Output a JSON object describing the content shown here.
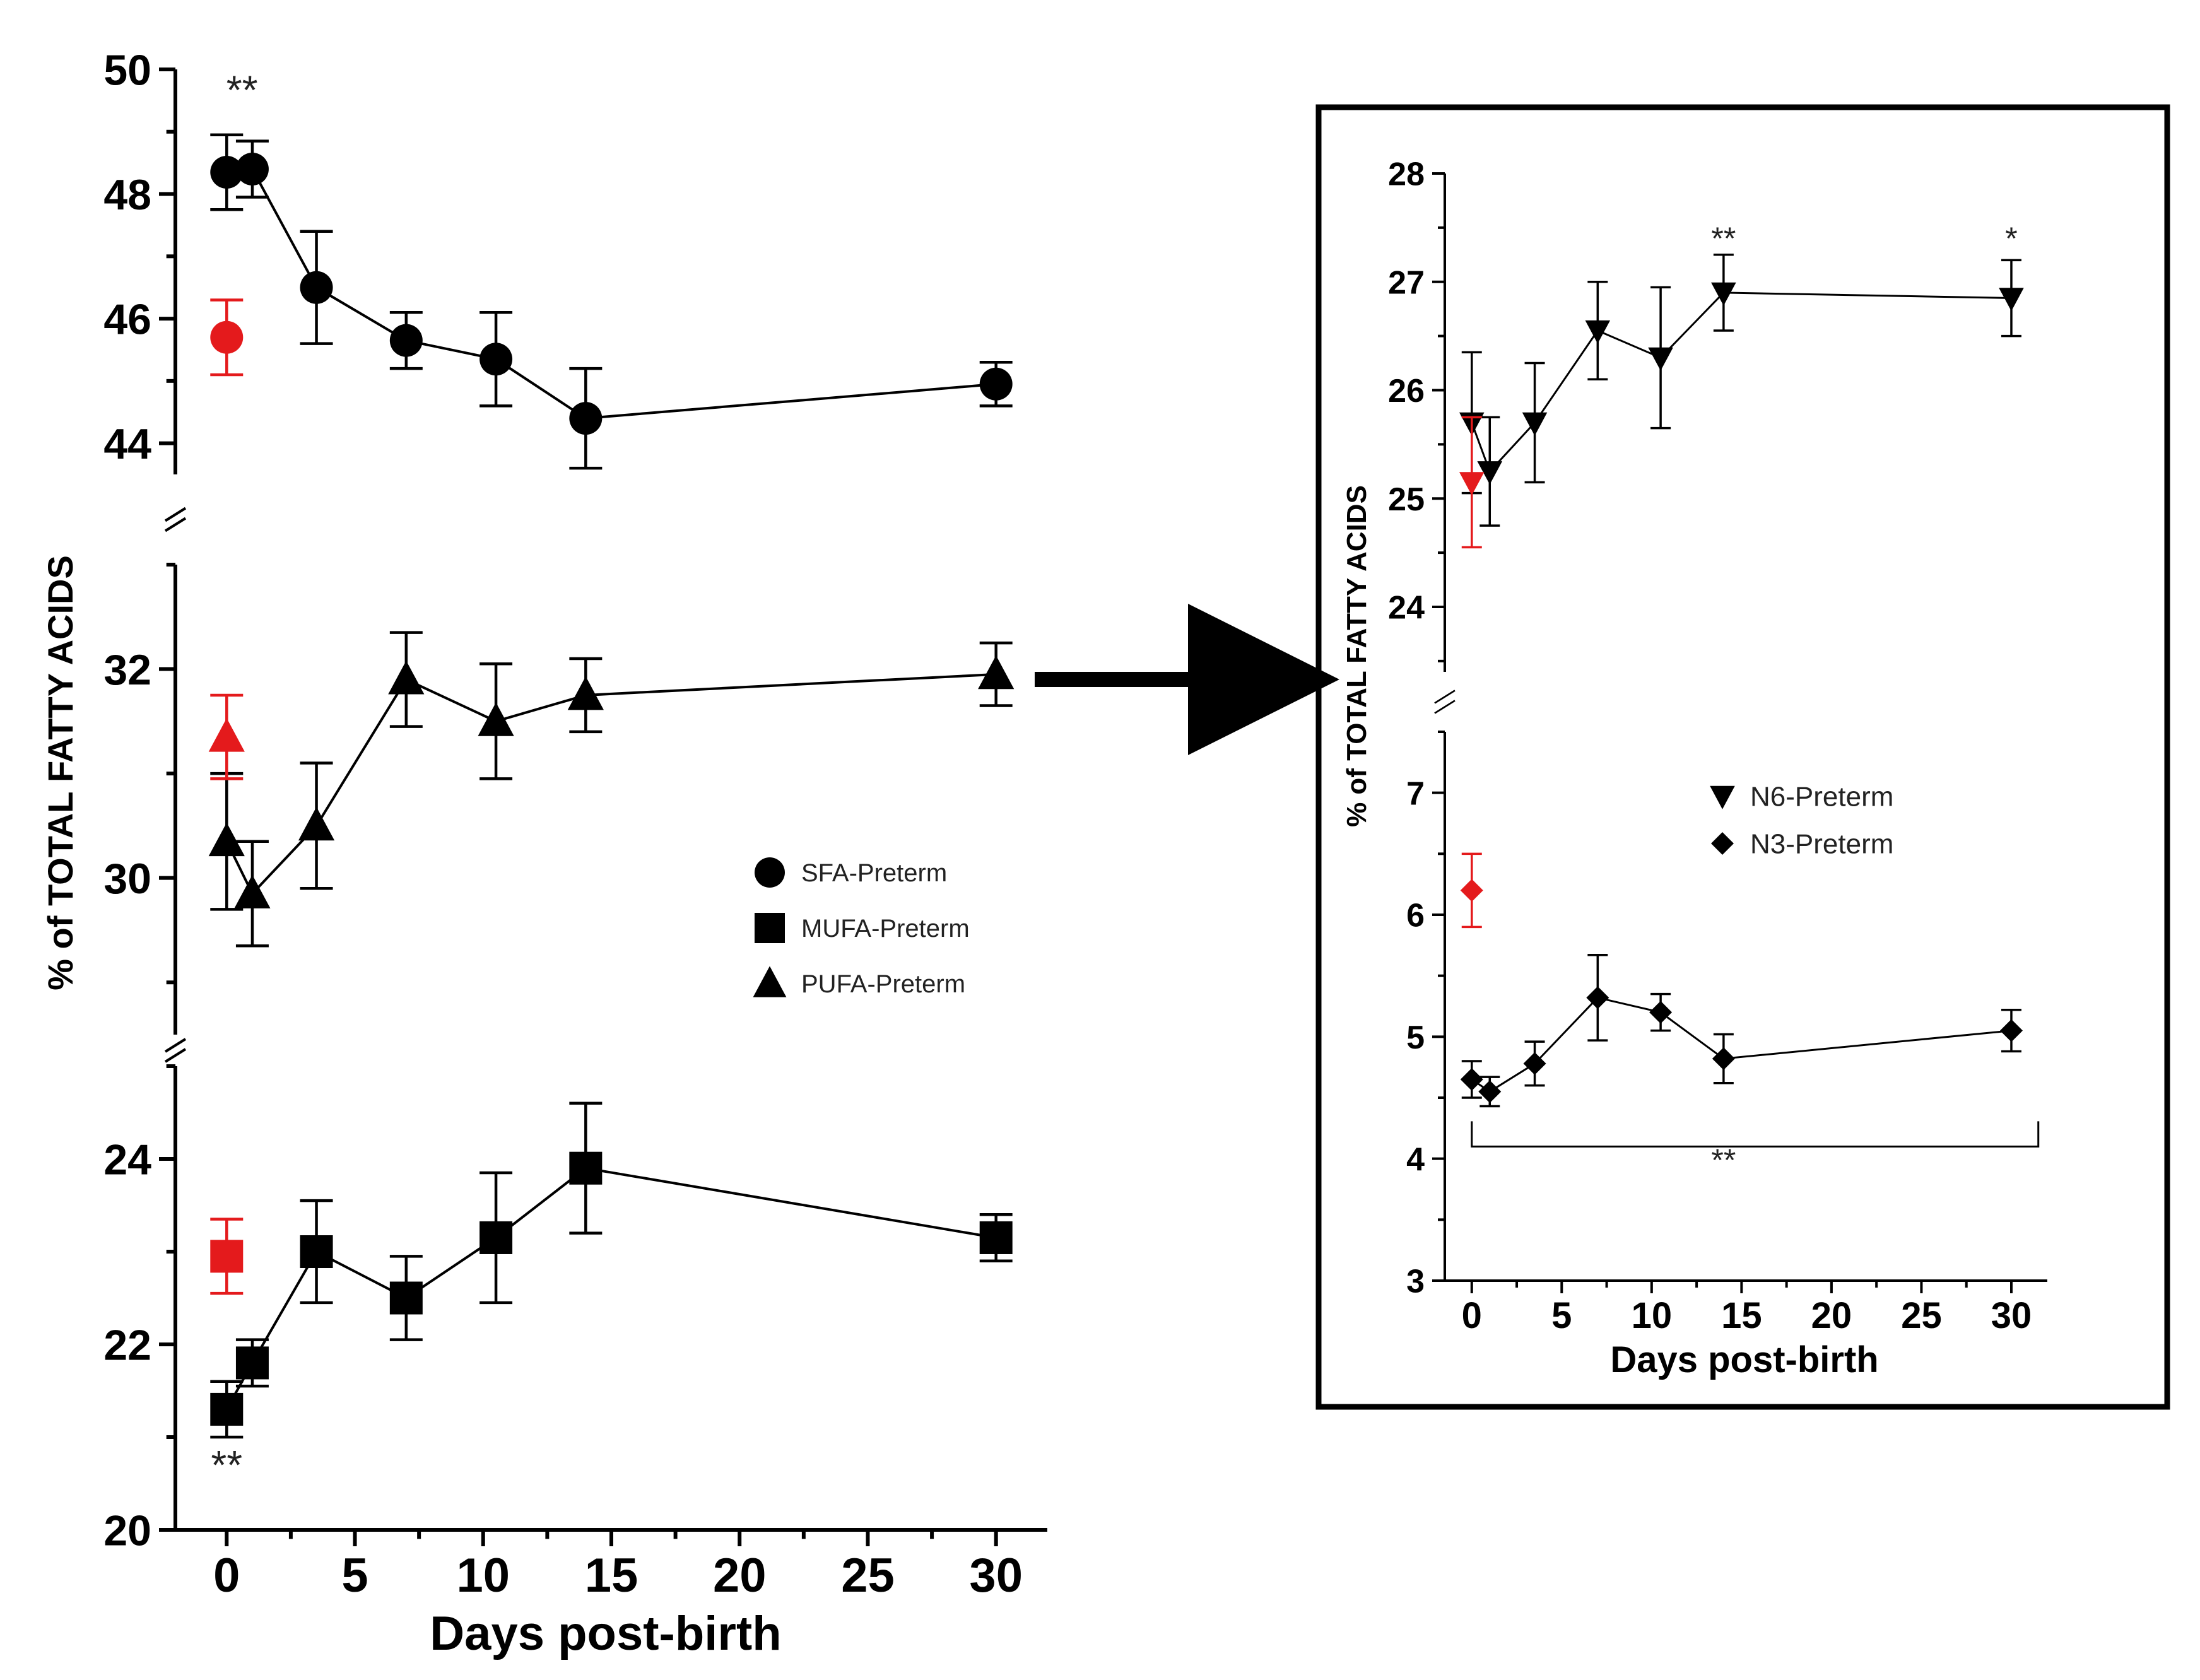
{
  "chart_data": [
    {
      "type": "line",
      "xlabel": "Days post-birth",
      "ylabel": "% of TOTAL FATTY ACIDS",
      "xlim": [
        -2,
        32
      ],
      "x_ticks": [
        0,
        5,
        10,
        15,
        20,
        25,
        30
      ],
      "y_segments": [
        {
          "range": [
            43.5,
            50
          ],
          "ticks": [
            44,
            46,
            48,
            50
          ]
        },
        {
          "range": [
            28.5,
            33
          ],
          "ticks": [
            30,
            32
          ]
        },
        {
          "range": [
            20,
            25
          ],
          "ticks": [
            20,
            22,
            24
          ]
        }
      ],
      "legend": [
        {
          "label": "SFA-Preterm",
          "marker": "circle"
        },
        {
          "label": "MUFA-Preterm",
          "marker": "square"
        },
        {
          "label": "PUFA-Preterm",
          "marker": "triangle"
        }
      ],
      "series": [
        {
          "name": "SFA-Preterm",
          "segment": 0,
          "marker": "circle",
          "x": [
            0,
            1,
            3.5,
            7,
            10.5,
            14,
            30
          ],
          "y": [
            48.35,
            48.4,
            46.5,
            45.65,
            45.35,
            44.4,
            44.95
          ],
          "err": [
            0.6,
            0.45,
            0.9,
            0.45,
            0.75,
            0.8,
            0.35
          ],
          "reference": {
            "x": 0,
            "y": 45.7,
            "err": 0.6
          }
        },
        {
          "name": "PUFA-Preterm",
          "segment": 1,
          "marker": "triangle",
          "x": [
            0,
            1,
            3.5,
            7,
            10.5,
            14,
            30
          ],
          "y": [
            30.35,
            29.85,
            30.5,
            31.9,
            31.5,
            31.75,
            31.95
          ],
          "err": [
            0.65,
            0.5,
            0.6,
            0.45,
            0.55,
            0.35,
            0.3
          ],
          "reference": {
            "x": 0,
            "y": 31.35,
            "err": 0.4
          }
        },
        {
          "name": "MUFA-Preterm",
          "segment": 2,
          "marker": "square",
          "x": [
            0,
            1,
            3.5,
            7,
            10.5,
            14,
            30
          ],
          "y": [
            21.3,
            21.8,
            23.0,
            22.5,
            23.15,
            23.9,
            23.15
          ],
          "err": [
            0.3,
            0.25,
            0.55,
            0.45,
            0.7,
            0.7,
            0.25
          ],
          "reference": {
            "x": 0,
            "y": 22.95,
            "err": 0.4
          }
        }
      ],
      "annotations": [
        {
          "text": "**",
          "segment": 0,
          "x": 0.6,
          "y": 49.45
        },
        {
          "text": "**",
          "segment": 2,
          "x": 0,
          "y": 20.55
        }
      ]
    },
    {
      "type": "line",
      "xlabel": "Days post-birth",
      "ylabel": "% of TOTAL FATTY ACIDS",
      "xlim": [
        -1.5,
        32
      ],
      "x_ticks": [
        0,
        5,
        10,
        15,
        20,
        25,
        30
      ],
      "y_segments": [
        {
          "range": [
            23.4,
            28
          ],
          "ticks": [
            24,
            25,
            26,
            27,
            28
          ]
        },
        {
          "range": [
            3,
            7.5
          ],
          "ticks": [
            3,
            4,
            5,
            6,
            7
          ]
        }
      ],
      "legend": [
        {
          "label": "N6-Preterm",
          "marker": "triangle-down"
        },
        {
          "label": "N3-Preterm",
          "marker": "diamond"
        }
      ],
      "series": [
        {
          "name": "N6-Preterm",
          "segment": 0,
          "marker": "triangle-down",
          "x": [
            0,
            1,
            3.5,
            7,
            10.5,
            14,
            30
          ],
          "y": [
            25.7,
            25.25,
            25.7,
            26.55,
            26.3,
            26.9,
            26.85
          ],
          "err": [
            0.65,
            0.5,
            0.55,
            0.45,
            0.65,
            0.35,
            0.35
          ],
          "reference": {
            "x": 0,
            "y": 25.15,
            "err": 0.6
          }
        },
        {
          "name": "N3-Preterm",
          "segment": 1,
          "marker": "diamond",
          "x": [
            0,
            1,
            3.5,
            7,
            10.5,
            14,
            30
          ],
          "y": [
            4.65,
            4.55,
            4.78,
            5.32,
            5.2,
            4.82,
            5.05
          ],
          "err": [
            0.15,
            0.12,
            0.18,
            0.35,
            0.15,
            0.2,
            0.17
          ],
          "reference": {
            "x": 0,
            "y": 6.2,
            "err": 0.3
          }
        }
      ],
      "annotations": [
        {
          "text": "**",
          "segment": 0,
          "x": 14,
          "y": 27.3
        },
        {
          "text": "*",
          "segment": 0,
          "x": 30,
          "y": 27.3
        },
        {
          "text": "**",
          "segment": 1,
          "x": 14,
          "y": 3.9
        }
      ],
      "bracket": {
        "segment": 1,
        "x_start": 0,
        "x_end": 31.5,
        "y": 4.1
      }
    }
  ],
  "colors": {
    "preterm": "#000000",
    "reference": "#e41a1c"
  }
}
